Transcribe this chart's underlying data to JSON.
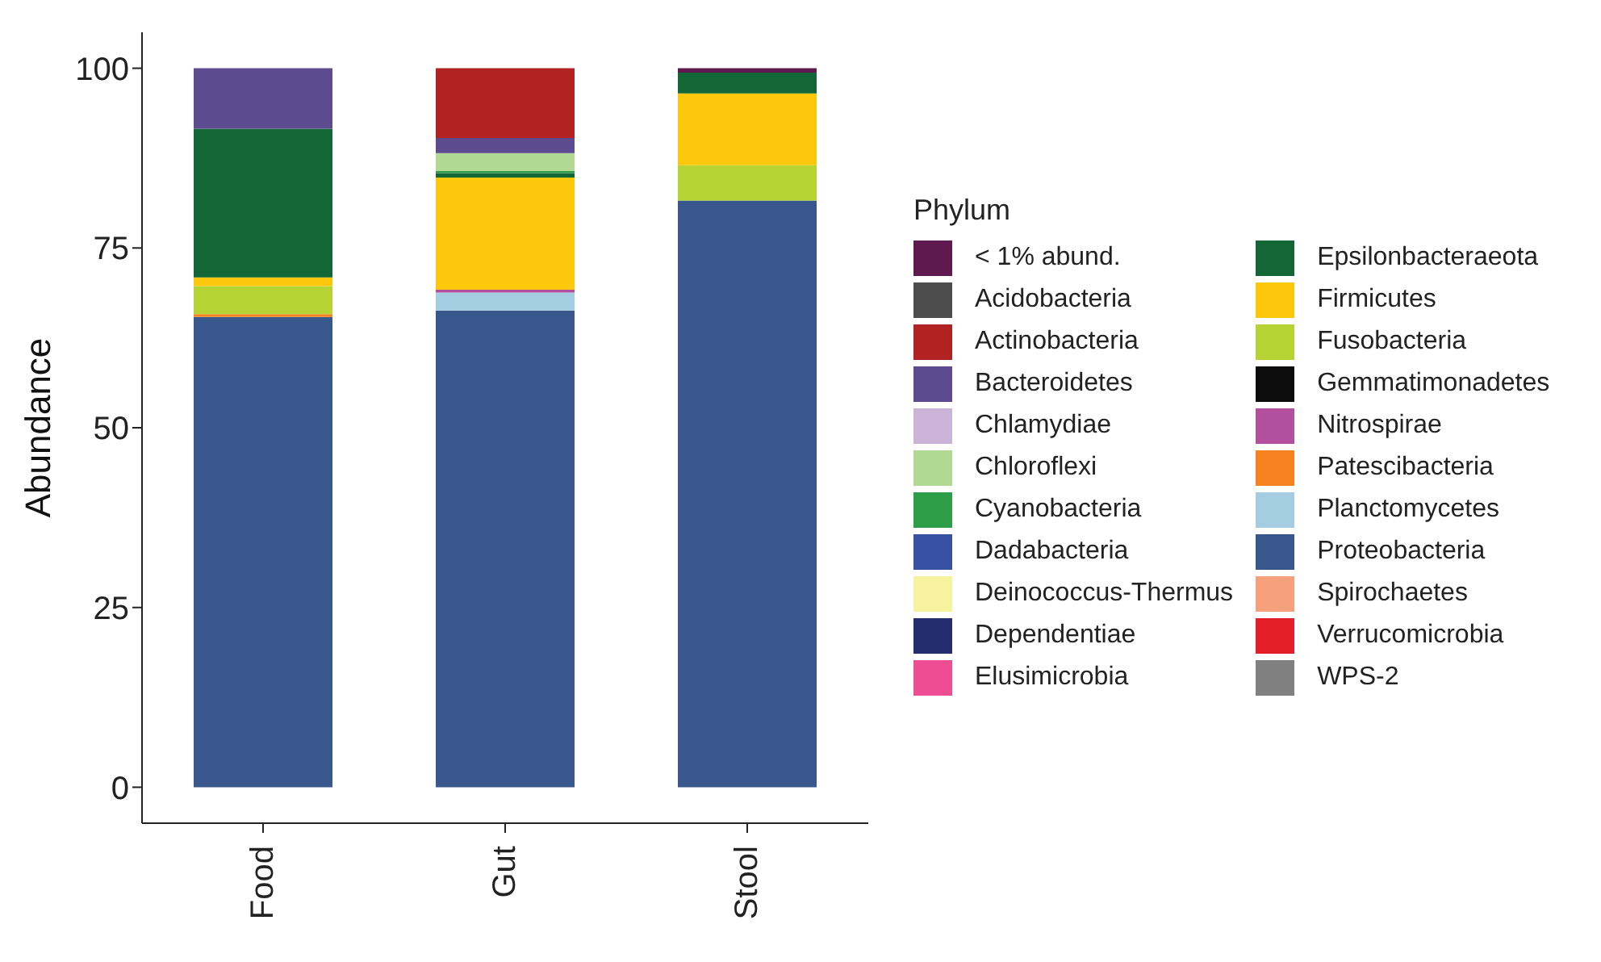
{
  "chart_data": {
    "type": "bar",
    "stacked": true,
    "ylabel": "Abundance",
    "legend_title": "Phylum",
    "legend": "right",
    "categories": [
      "Food",
      "Gut",
      "Stool"
    ],
    "ylim": [
      -5,
      105
    ],
    "yticks": [
      0,
      25,
      50,
      75,
      100
    ],
    "grid": false,
    "series": [
      {
        "name": "WPS-2",
        "color": "#808080",
        "values": [
          0,
          0,
          0
        ]
      },
      {
        "name": "Verrucomicrobia",
        "color": "#e31e26",
        "values": [
          0,
          0,
          0
        ]
      },
      {
        "name": "Spirochaetes",
        "color": "#f7a07c",
        "values": [
          0,
          0,
          0
        ]
      },
      {
        "name": "Proteobacteria",
        "color": "#38578c",
        "values": [
          65.4,
          66.3,
          81.6
        ]
      },
      {
        "name": "Planctomycetes",
        "color": "#a4cde1",
        "values": [
          0,
          2.5,
          0
        ]
      },
      {
        "name": "Patescibacteria",
        "color": "#f5821f",
        "values": [
          0.4,
          0,
          0
        ]
      },
      {
        "name": "Nitrospirae",
        "color": "#b2509e",
        "values": [
          0,
          0.4,
          0
        ]
      },
      {
        "name": "Gemmatimonadetes",
        "color": "#0c0c0c",
        "values": [
          0,
          0,
          0
        ]
      },
      {
        "name": "Fusobacteria",
        "color": "#b8d434",
        "values": [
          3.9,
          0,
          4.9
        ]
      },
      {
        "name": "Firmicutes",
        "color": "#fdc70c",
        "values": [
          1.2,
          15.6,
          10.0
        ]
      },
      {
        "name": "Epsilonbacteraeota",
        "color": "#136636",
        "values": [
          20.7,
          0.6,
          2.9
        ]
      },
      {
        "name": "Elusimicrobia",
        "color": "#ef4d93",
        "values": [
          0,
          0,
          0
        ]
      },
      {
        "name": "Dependentiae",
        "color": "#262d6e",
        "values": [
          0,
          0,
          0
        ]
      },
      {
        "name": "Deinococcus-Thermus",
        "color": "#f7f29e",
        "values": [
          0,
          0,
          0
        ]
      },
      {
        "name": "Dadabacteria",
        "color": "#3951a2",
        "values": [
          0,
          0,
          0
        ]
      },
      {
        "name": "Cyanobacteria",
        "color": "#2e9e48",
        "values": [
          0,
          0.3,
          0
        ]
      },
      {
        "name": "Chloroflexi",
        "color": "#b2d993",
        "values": [
          0,
          2.5,
          0
        ]
      },
      {
        "name": "Chlamydiae",
        "color": "#cbb4d8",
        "values": [
          0,
          0,
          0
        ]
      },
      {
        "name": "Bacteroidetes",
        "color": "#5c4b8f",
        "values": [
          8.4,
          2.1,
          0
        ]
      },
      {
        "name": "Actinobacteria",
        "color": "#b22222",
        "values": [
          0,
          9.7,
          0
        ]
      },
      {
        "name": "Acidobacteria",
        "color": "#4d4d4d",
        "values": [
          0,
          0,
          0
        ]
      },
      {
        "name": "< 1% abund.",
        "color": "#5e1a4e",
        "values": [
          0,
          0,
          0.6
        ]
      }
    ]
  }
}
